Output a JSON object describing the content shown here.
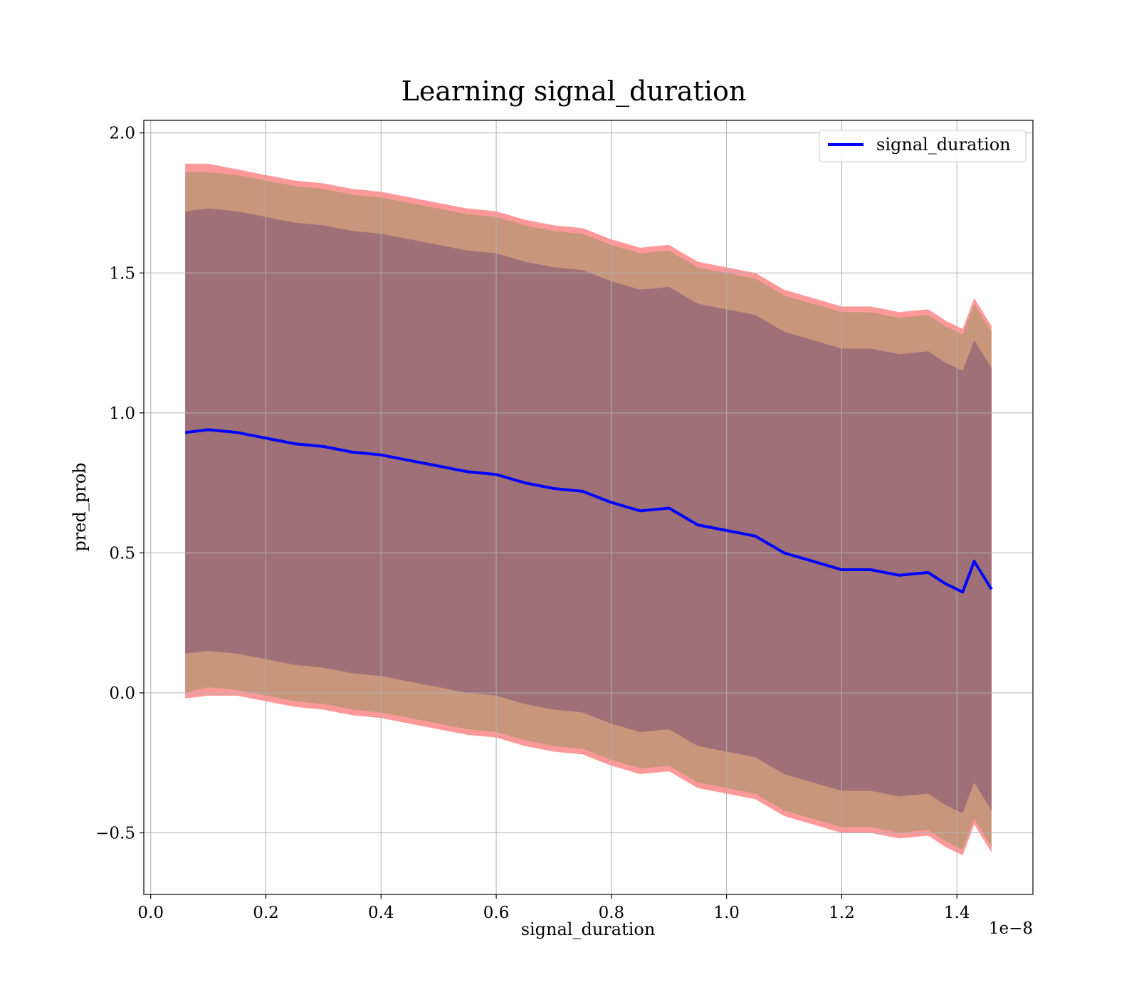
{
  "chart_data": {
    "type": "line",
    "title": "Learning signal_duration",
    "xlabel": "signal_duration",
    "ylabel": "pred_prob",
    "x_offset_text": "1e−8",
    "xlim": [
      -0.012,
      1.532
    ],
    "ylim": [
      -0.72,
      2.045
    ],
    "x_ticks": [
      0.0,
      0.2,
      0.4,
      0.6,
      0.8,
      1.0,
      1.2,
      1.4
    ],
    "x_tick_labels": [
      "0.0",
      "0.2",
      "0.4",
      "0.6",
      "0.8",
      "1.0",
      "1.2",
      "1.4"
    ],
    "y_ticks": [
      -0.5,
      0.0,
      0.5,
      1.0,
      1.5,
      2.0
    ],
    "y_tick_labels": [
      "−0.5",
      "0.0",
      "0.5",
      "1.0",
      "1.5",
      "2.0"
    ],
    "grid": true,
    "legend_position": "top-right",
    "colors": {
      "line": "#0000ff",
      "band_outer": "#ff9999",
      "band_middle": "#c8977b",
      "band_inner": "#a07078"
    },
    "series": [
      {
        "name": "signal_duration",
        "x": [
          0.06,
          0.1,
          0.15,
          0.2,
          0.25,
          0.3,
          0.35,
          0.4,
          0.45,
          0.5,
          0.55,
          0.6,
          0.65,
          0.7,
          0.75,
          0.8,
          0.85,
          0.9,
          0.95,
          1.0,
          1.05,
          1.1,
          1.15,
          1.2,
          1.25,
          1.3,
          1.35,
          1.38,
          1.41,
          1.43,
          1.46
        ],
        "y": [
          0.93,
          0.94,
          0.93,
          0.91,
          0.89,
          0.88,
          0.86,
          0.85,
          0.83,
          0.81,
          0.79,
          0.78,
          0.75,
          0.73,
          0.72,
          0.68,
          0.65,
          0.66,
          0.6,
          0.58,
          0.56,
          0.5,
          0.47,
          0.44,
          0.44,
          0.42,
          0.43,
          0.39,
          0.36,
          0.47,
          0.37
        ]
      }
    ],
    "bands": [
      {
        "x": [
          0.06,
          0.1,
          0.15,
          0.2,
          0.25,
          0.3,
          0.35,
          0.4,
          0.45,
          0.5,
          0.55,
          0.6,
          0.65,
          0.7,
          0.75,
          0.8,
          0.85,
          0.9,
          0.95,
          1.0,
          1.05,
          1.1,
          1.15,
          1.2,
          1.25,
          1.3,
          1.35,
          1.38,
          1.41,
          1.43,
          1.46
        ],
        "upper": [
          1.89,
          1.89,
          1.87,
          1.85,
          1.83,
          1.82,
          1.8,
          1.79,
          1.77,
          1.75,
          1.73,
          1.72,
          1.69,
          1.67,
          1.66,
          1.62,
          1.59,
          1.6,
          1.54,
          1.52,
          1.5,
          1.44,
          1.41,
          1.38,
          1.38,
          1.36,
          1.37,
          1.33,
          1.3,
          1.41,
          1.31
        ],
        "lower": [
          -0.02,
          -0.01,
          -0.01,
          -0.03,
          -0.05,
          -0.06,
          -0.08,
          -0.09,
          -0.11,
          -0.13,
          -0.15,
          -0.16,
          -0.19,
          -0.21,
          -0.22,
          -0.26,
          -0.29,
          -0.28,
          -0.34,
          -0.36,
          -0.38,
          -0.44,
          -0.47,
          -0.5,
          -0.5,
          -0.52,
          -0.51,
          -0.55,
          -0.58,
          -0.47,
          -0.57
        ]
      },
      {
        "x": [
          0.06,
          0.1,
          0.15,
          0.2,
          0.25,
          0.3,
          0.35,
          0.4,
          0.45,
          0.5,
          0.55,
          0.6,
          0.65,
          0.7,
          0.75,
          0.8,
          0.85,
          0.9,
          0.95,
          1.0,
          1.05,
          1.1,
          1.15,
          1.2,
          1.25,
          1.3,
          1.35,
          1.38,
          1.41,
          1.43,
          1.46
        ],
        "upper": [
          1.86,
          1.86,
          1.85,
          1.83,
          1.81,
          1.8,
          1.78,
          1.77,
          1.75,
          1.73,
          1.71,
          1.7,
          1.67,
          1.65,
          1.64,
          1.6,
          1.57,
          1.58,
          1.52,
          1.5,
          1.48,
          1.42,
          1.39,
          1.36,
          1.36,
          1.34,
          1.35,
          1.31,
          1.28,
          1.39,
          1.29
        ],
        "lower": [
          0.0,
          0.02,
          0.01,
          -0.01,
          -0.03,
          -0.04,
          -0.06,
          -0.07,
          -0.09,
          -0.11,
          -0.13,
          -0.14,
          -0.17,
          -0.19,
          -0.2,
          -0.24,
          -0.27,
          -0.26,
          -0.32,
          -0.34,
          -0.36,
          -0.42,
          -0.45,
          -0.48,
          -0.48,
          -0.5,
          -0.49,
          -0.53,
          -0.56,
          -0.45,
          -0.55
        ]
      },
      {
        "x": [
          0.06,
          0.1,
          0.15,
          0.2,
          0.25,
          0.3,
          0.35,
          0.4,
          0.45,
          0.5,
          0.55,
          0.6,
          0.65,
          0.7,
          0.75,
          0.8,
          0.85,
          0.9,
          0.95,
          1.0,
          1.05,
          1.1,
          1.15,
          1.2,
          1.25,
          1.3,
          1.35,
          1.38,
          1.41,
          1.43,
          1.46
        ],
        "upper": [
          1.72,
          1.73,
          1.72,
          1.7,
          1.68,
          1.67,
          1.65,
          1.64,
          1.62,
          1.6,
          1.58,
          1.57,
          1.54,
          1.52,
          1.51,
          1.47,
          1.44,
          1.45,
          1.39,
          1.37,
          1.35,
          1.29,
          1.26,
          1.23,
          1.23,
          1.21,
          1.22,
          1.18,
          1.15,
          1.26,
          1.16
        ],
        "lower": [
          0.14,
          0.15,
          0.14,
          0.12,
          0.1,
          0.09,
          0.07,
          0.06,
          0.04,
          0.02,
          0.0,
          -0.01,
          -0.04,
          -0.06,
          -0.07,
          -0.11,
          -0.14,
          -0.13,
          -0.19,
          -0.21,
          -0.23,
          -0.29,
          -0.32,
          -0.35,
          -0.35,
          -0.37,
          -0.36,
          -0.4,
          -0.43,
          -0.32,
          -0.42
        ]
      }
    ]
  }
}
